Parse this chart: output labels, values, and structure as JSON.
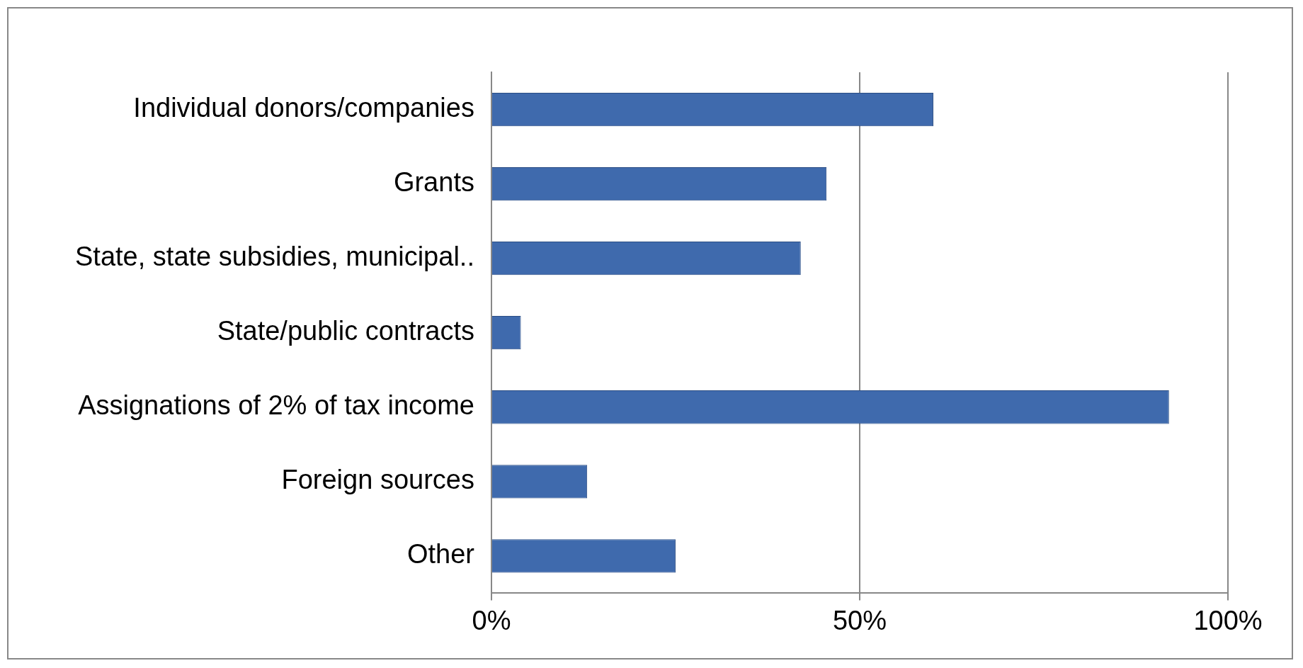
{
  "chart_data": {
    "type": "bar",
    "orientation": "horizontal",
    "categories": [
      "Individual donors/companies",
      "Grants",
      "State, state subsidies, municipal..",
      "State/public contracts",
      "Assignations of 2% of tax income",
      "Foreign sources",
      "Other"
    ],
    "values": [
      60,
      45.5,
      42,
      4,
      92,
      13,
      25
    ],
    "color": "#3f6aad",
    "xlim": [
      0,
      100
    ],
    "xticks": [
      {
        "value": 0,
        "label": "0%"
      },
      {
        "value": 50,
        "label": "50%"
      },
      {
        "value": 100,
        "label": "100%"
      }
    ],
    "grid": "x"
  }
}
